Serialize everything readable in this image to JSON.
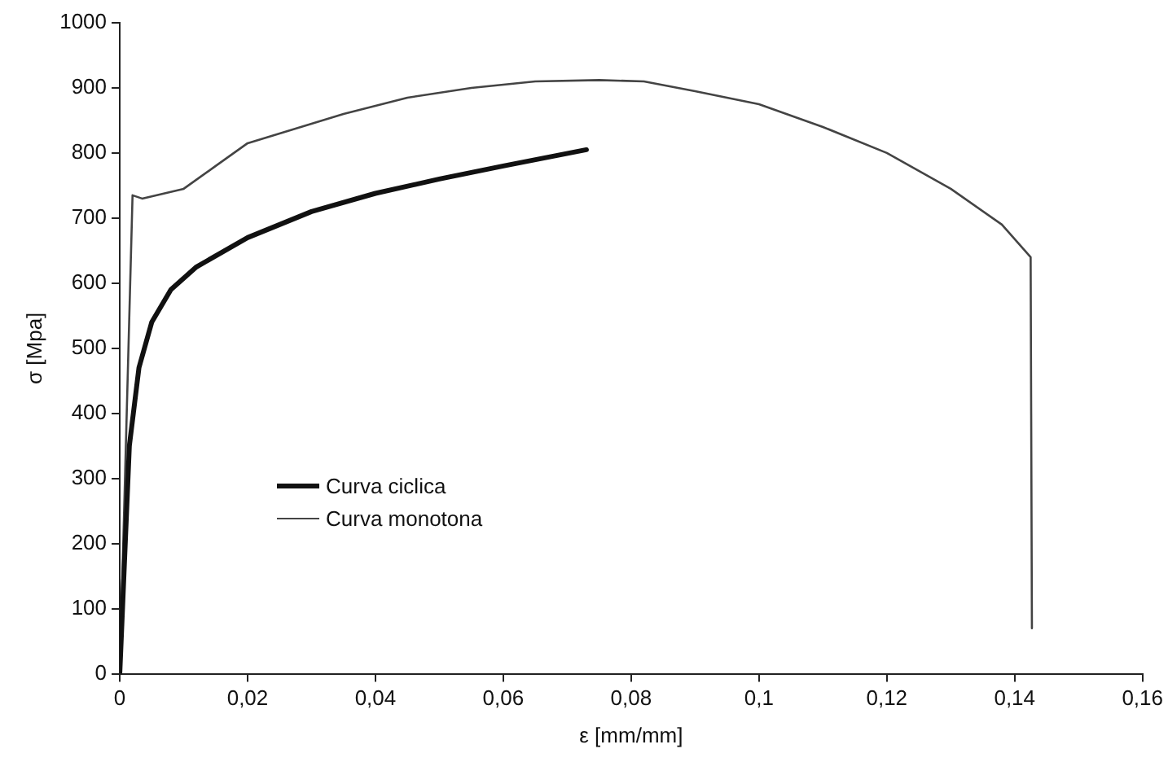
{
  "chart_data": {
    "type": "line",
    "xlabel": "ε [mm/mm]",
    "ylabel": "σ [Mpa]",
    "xlim": [
      0,
      0.16
    ],
    "xticks": [
      0,
      {
        "value": 0.02,
        "label": "0,02"
      },
      {
        "value": 0.04,
        "label": "0,04"
      },
      {
        "value": 0.06,
        "label": "0,06"
      },
      {
        "value": 0.08,
        "label": "0,08"
      },
      {
        "value": 0.1,
        "label": "0,1"
      },
      {
        "value": 0.12,
        "label": "0,12"
      },
      {
        "value": 0.14,
        "label": "0,14"
      },
      {
        "value": 0.16,
        "label": "0,16"
      }
    ],
    "ylim": [
      0,
      1000
    ],
    "yticks": [
      0,
      100,
      200,
      300,
      400,
      500,
      600,
      700,
      800,
      900,
      1000
    ],
    "grid": false,
    "legend": "left",
    "marker": "none",
    "line_style": "solid",
    "series": [
      {
        "name": "Curva ciclica",
        "color": "#111111",
        "x": [
          0,
          0.0015,
          0.003,
          0.005,
          0.008,
          0.012,
          0.02,
          0.03,
          0.04,
          0.05,
          0.06,
          0.073
        ],
        "values": [
          0,
          350,
          470,
          540,
          590,
          625,
          670,
          710,
          738,
          760,
          780,
          805
        ]
      },
      {
        "name": "Curva monotona",
        "color": "#444444",
        "x": [
          0,
          0.002,
          0.0035,
          0.01,
          0.015,
          0.02,
          0.025,
          0.035,
          0.045,
          0.055,
          0.065,
          0.075,
          0.082,
          0.09,
          0.1,
          0.11,
          0.12,
          0.13,
          0.138,
          0.1425,
          0.1427
        ],
        "values": [
          0,
          735,
          730,
          745,
          780,
          815,
          830,
          860,
          885,
          900,
          910,
          912,
          910,
          895,
          875,
          840,
          800,
          745,
          690,
          640,
          70
        ]
      }
    ]
  }
}
